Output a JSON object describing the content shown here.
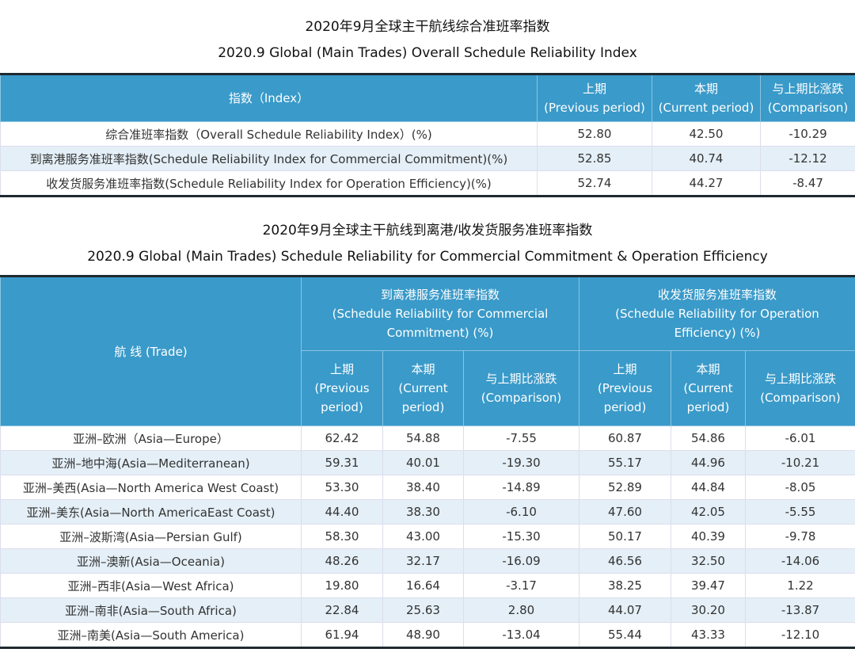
{
  "table1": {
    "title_cn": "2020年9月全球主干航线综合准班率指数",
    "title_en": "2020.9 Global (Main Trades) Overall Schedule Reliability Index",
    "headers": {
      "index": "指数（Index）",
      "prev_cn": "上期",
      "prev_en": "(Previous period)",
      "cur_cn": "本期",
      "cur_en": "(Current period)",
      "cmp_cn": "与上期比涨跌",
      "cmp_en": "(Comparison)"
    },
    "rows": [
      {
        "name": "综合准班率指数（Overall Schedule Reliability Index）(%)",
        "prev": "52.80",
        "cur": "42.50",
        "cmp": "-10.29"
      },
      {
        "name": "到离港服务准班率指数(Schedule Reliability Index for Commercial Commitment)(%)",
        "prev": "52.85",
        "cur": "40.74",
        "cmp": "-12.12"
      },
      {
        "name": "收发货服务准班率指数(Schedule Reliability Index for Operation Efficiency)(%)",
        "prev": "52.74",
        "cur": "44.27",
        "cmp": "-8.47"
      }
    ]
  },
  "table2": {
    "title_cn": "2020年9月全球主干航线到离港/收发货服务准班率指数",
    "title_en": "2020.9 Global (Main Trades) Schedule Reliability for Commercial Commitment & Operation Efficiency",
    "headers": {
      "trade": "航 线 (Trade)",
      "group1_cn": "到离港服务准班率指数",
      "group1_en": "(Schedule Reliability for Commercial Commitment) (%)",
      "group2_cn": "收发货服务准班率指数",
      "group2_en": "(Schedule Reliability for Operation Efficiency) (%)",
      "prev_cn": "上期",
      "prev_en": "(Previous period)",
      "cur_cn": "本期",
      "cur_en": "(Current period)",
      "cmp_cn": "与上期比涨跌",
      "cmp_en": "(Comparison)"
    },
    "rows": [
      {
        "trade": "亚洲–欧洲（Asia—Europe）",
        "c1": [
          "62.42",
          "54.88",
          "-7.55"
        ],
        "c2": [
          "60.87",
          "54.86",
          "-6.01"
        ]
      },
      {
        "trade": "亚洲–地中海(Asia—Mediterranean)",
        "c1": [
          "59.31",
          "40.01",
          "-19.30"
        ],
        "c2": [
          "55.17",
          "44.96",
          "-10.21"
        ]
      },
      {
        "trade": "亚洲–美西(Asia—North America West Coast)",
        "c1": [
          "53.30",
          "38.40",
          "-14.89"
        ],
        "c2": [
          "52.89",
          "44.84",
          "-8.05"
        ]
      },
      {
        "trade": "亚洲–美东(Asia—North AmericaEast Coast)",
        "c1": [
          "44.40",
          "38.30",
          "-6.10"
        ],
        "c2": [
          "47.60",
          "42.05",
          "-5.55"
        ]
      },
      {
        "trade": "亚洲–波斯湾(Asia—Persian Gulf)",
        "c1": [
          "58.30",
          "43.00",
          "-15.30"
        ],
        "c2": [
          "50.17",
          "40.39",
          "-9.78"
        ]
      },
      {
        "trade": "亚洲–澳新(Asia—Oceania)",
        "c1": [
          "48.26",
          "32.17",
          "-16.09"
        ],
        "c2": [
          "46.56",
          "32.50",
          "-14.06"
        ]
      },
      {
        "trade": "亚洲–西非(Asia—West Africa)",
        "c1": [
          "19.80",
          "16.64",
          "-3.17"
        ],
        "c2": [
          "38.25",
          "39.47",
          "1.22"
        ]
      },
      {
        "trade": "亚洲–南非(Asia—South Africa)",
        "c1": [
          "22.84",
          "25.63",
          "2.80"
        ],
        "c2": [
          "44.07",
          "30.20",
          "-13.87"
        ]
      },
      {
        "trade": "亚洲–南美(Asia—South America)",
        "c1": [
          "61.94",
          "48.90",
          "-13.04"
        ],
        "c2": [
          "55.44",
          "43.33",
          "-12.10"
        ]
      }
    ]
  },
  "colors": {
    "header": "#3a9ac9",
    "alt_row": "#e4eff7",
    "border": "#1e2a30"
  }
}
